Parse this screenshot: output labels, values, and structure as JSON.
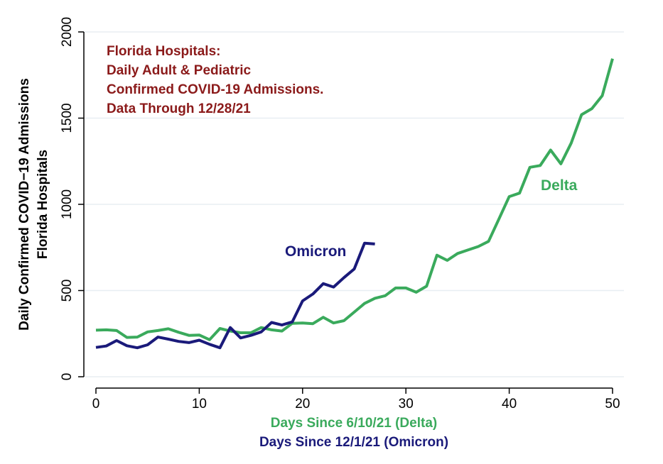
{
  "chart_data": {
    "type": "line",
    "title_lines": [
      "Florida Hospitals:",
      "Daily Adult & Pediatric",
      "Confirmed COVID-19 Admissions.",
      "Data Through 12/28/21"
    ],
    "ylabel_lines": [
      "Daily Confirmed COVID−19 Admissions",
      "Florida Hospitals"
    ],
    "xlabel_delta": "Days Since 6/10/21 (Delta)",
    "xlabel_omicron": "Days Since 12/1/21 (Omicron)",
    "xlim": [
      0,
      50
    ],
    "ylim": [
      0,
      2000
    ],
    "xticks": [
      0,
      10,
      20,
      30,
      40,
      50
    ],
    "yticks": [
      0,
      500,
      1000,
      1500,
      2000
    ],
    "grid": true,
    "colors": {
      "delta": "#3aaa5c",
      "omicron": "#1a1a7a",
      "title": "#8b1a1a",
      "grid": "#e8eef2",
      "axis": "#000000"
    },
    "series": [
      {
        "name": "Delta",
        "x": [
          0,
          1,
          2,
          3,
          4,
          5,
          6,
          7,
          8,
          9,
          10,
          11,
          12,
          13,
          14,
          15,
          16,
          17,
          18,
          19,
          20,
          21,
          22,
          23,
          24,
          25,
          26,
          27,
          28,
          29,
          30,
          31,
          32,
          33,
          34,
          35,
          36,
          37,
          38,
          39,
          40,
          41,
          42,
          43,
          44,
          45,
          46,
          47,
          48,
          49,
          50
        ],
        "values": [
          270,
          272,
          268,
          228,
          230,
          260,
          268,
          278,
          258,
          240,
          242,
          215,
          280,
          265,
          255,
          255,
          285,
          272,
          265,
          310,
          312,
          308,
          345,
          312,
          325,
          375,
          425,
          455,
          470,
          515,
          515,
          490,
          525,
          705,
          675,
          715,
          735,
          755,
          785,
          915,
          1045,
          1065,
          1215,
          1225,
          1315,
          1235,
          1355,
          1520,
          1555,
          1630,
          1845
        ]
      },
      {
        "name": "Omicron",
        "x": [
          0,
          1,
          2,
          3,
          4,
          5,
          6,
          7,
          8,
          9,
          10,
          11,
          12,
          13,
          14,
          15,
          16,
          17,
          18,
          19,
          20,
          21,
          22,
          23,
          24,
          25,
          26,
          27
        ],
        "values": [
          170,
          178,
          210,
          180,
          168,
          185,
          230,
          218,
          205,
          198,
          212,
          188,
          168,
          285,
          225,
          240,
          260,
          315,
          300,
          318,
          440,
          480,
          540,
          520,
          575,
          625,
          775,
          770
        ]
      }
    ]
  }
}
